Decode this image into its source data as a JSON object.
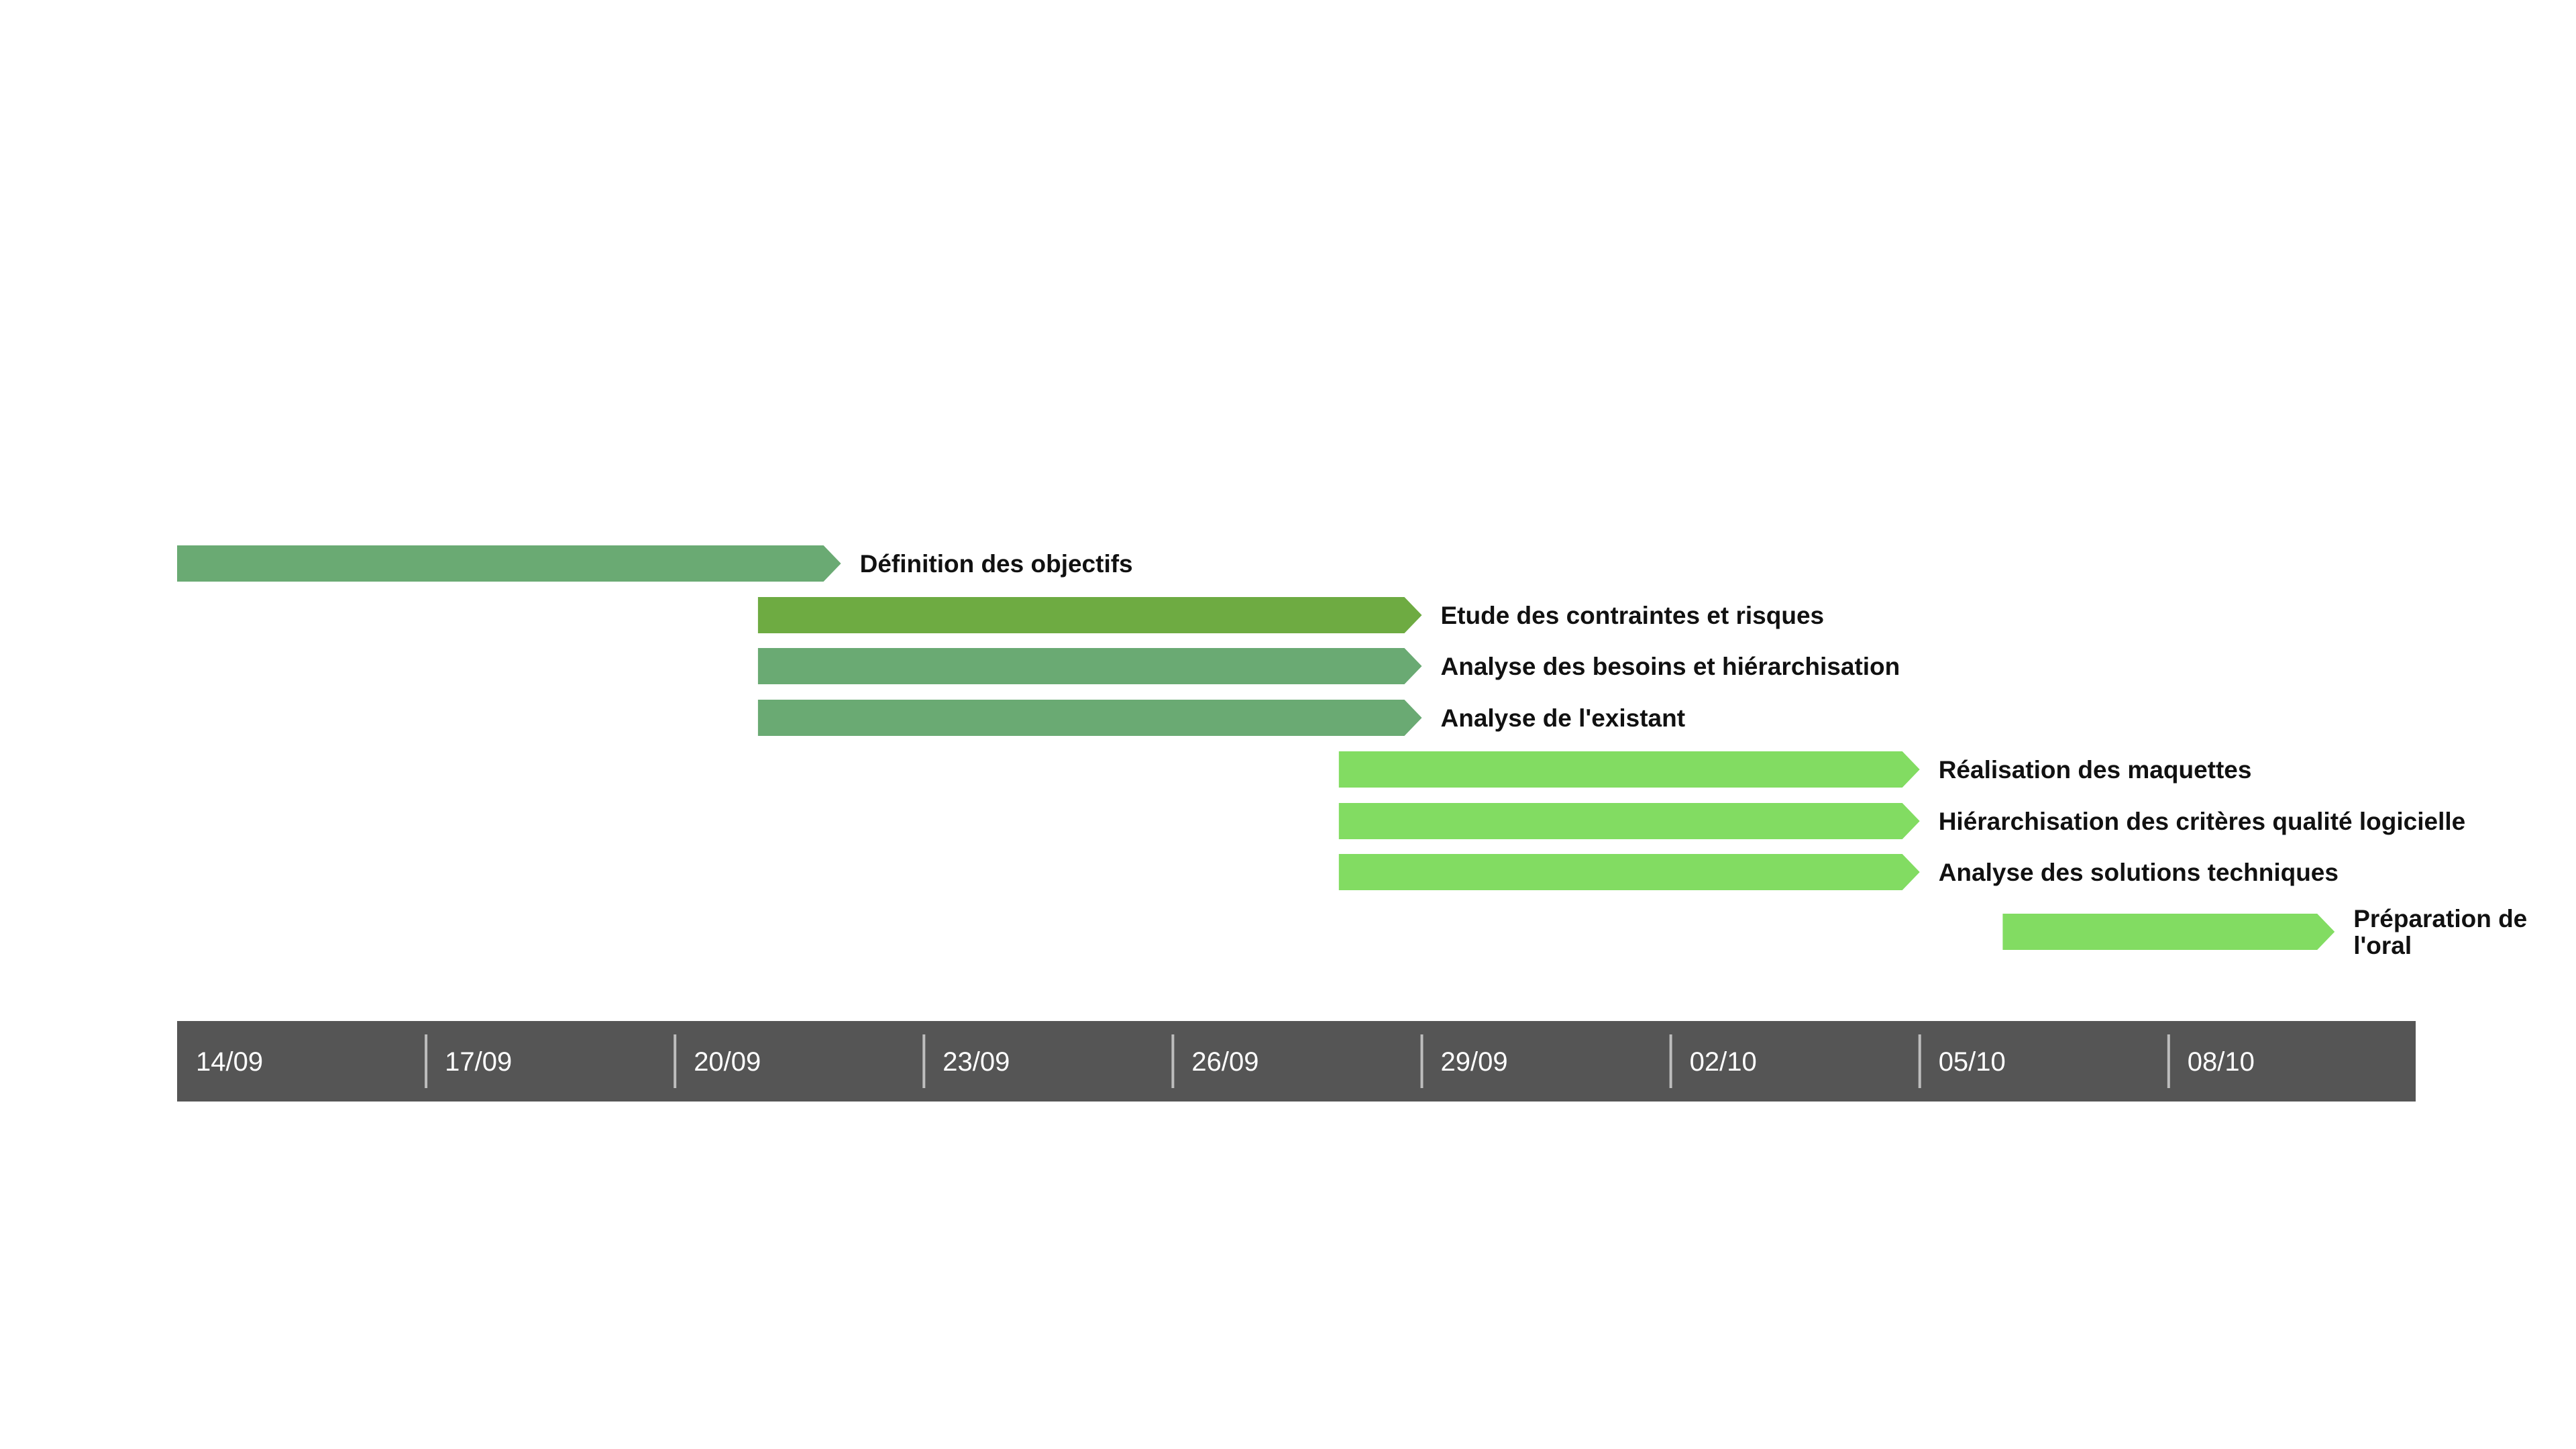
{
  "chart_data": {
    "type": "gantt",
    "x_axis": {
      "start": "2016-09-14",
      "end": "2016-10-11",
      "ticks": [
        "14/09",
        "17/09",
        "20/09",
        "23/09",
        "26/09",
        "29/09",
        "02/10",
        "05/10",
        "08/10"
      ]
    },
    "tasks": [
      {
        "label": "Définition des objectifs",
        "start": "2016-09-14",
        "end": "2016-09-22",
        "color": "#6aaa73"
      },
      {
        "label": "Etude des contraintes et risques",
        "start": "2016-09-21",
        "end": "2016-09-29",
        "color": "#6eab42"
      },
      {
        "label": "Analyse des besoins et hiérarchisation",
        "start": "2016-09-21",
        "end": "2016-09-29",
        "color": "#6aaa73"
      },
      {
        "label": "Analyse de l'existant",
        "start": "2016-09-21",
        "end": "2016-09-29",
        "color": "#6aaa73"
      },
      {
        "label": "Réalisation des maquettes",
        "start": "2016-09-28",
        "end": "2016-10-05",
        "color": "#82dc62"
      },
      {
        "label": "Hiérarchisation des critères qualité logicielle",
        "start": "2016-09-28",
        "end": "2016-10-05",
        "color": "#82dc62"
      },
      {
        "label": "Analyse des solutions techniques",
        "start": "2016-09-28",
        "end": "2016-10-05",
        "color": "#82dc62"
      },
      {
        "label": "Préparation de l'oral",
        "start": "2016-10-06",
        "end": "2016-10-10",
        "color": "#82dc62"
      }
    ],
    "axis_bar_color": "#555555"
  }
}
